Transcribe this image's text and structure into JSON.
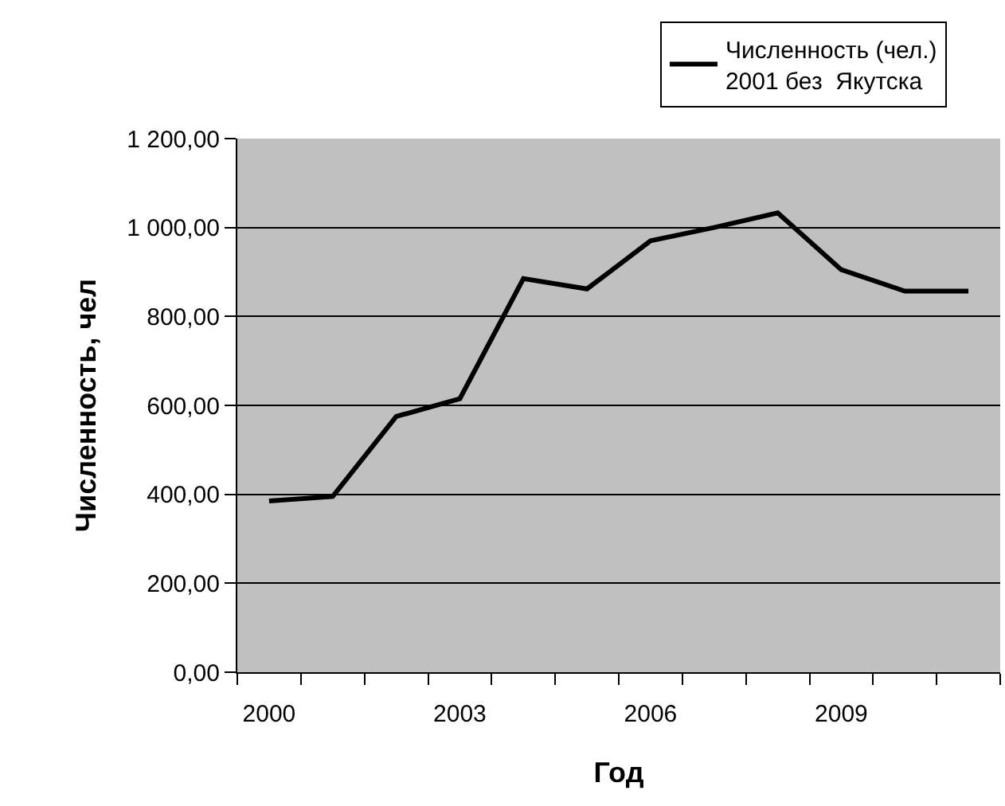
{
  "chart_data": {
    "type": "line",
    "xlabel": "Год",
    "ylabel": "Численность, чел",
    "categories": [
      "2000",
      null,
      null,
      "2003",
      null,
      null,
      "2006",
      null,
      null,
      "2009",
      null,
      null
    ],
    "series": [
      {
        "name": "Численность (чел.)\n2001 без  Якутска",
        "color": "#000000",
        "values": [
          385,
          395,
          575,
          615,
          885,
          862,
          970,
          1000,
          1033,
          905,
          857,
          857
        ]
      }
    ],
    "ylim": [
      0,
      1200
    ],
    "yticks": [
      {
        "value": 0,
        "label": "0,00"
      },
      {
        "value": 200,
        "label": "200,00"
      },
      {
        "value": 400,
        "label": "400,00"
      },
      {
        "value": 600,
        "label": "600,00"
      },
      {
        "value": 800,
        "label": "800,00"
      },
      {
        "value": 1000,
        "label": "1 000,00"
      },
      {
        "value": 1200,
        "label": "1 200,00"
      }
    ],
    "grid": "y",
    "legend": "top right",
    "marker": "none",
    "line_style": "solid"
  }
}
